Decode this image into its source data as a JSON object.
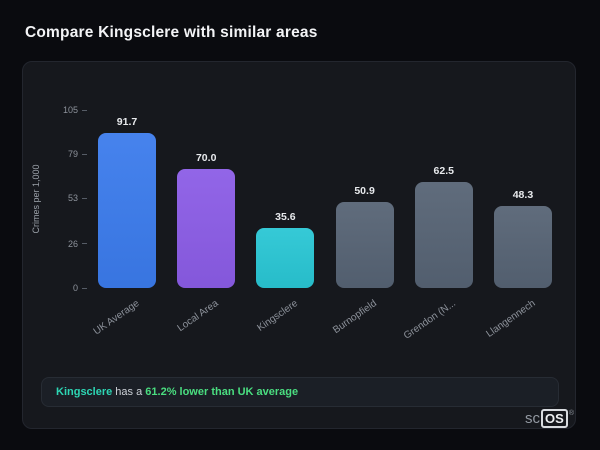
{
  "page": {
    "title": "Compare Kingsclere with similar areas"
  },
  "chart_data": {
    "type": "bar",
    "categories": [
      "UK Average",
      "Local Area",
      "Kingsclere",
      "Burnopfield",
      "Grendon (N...",
      "Llangennech"
    ],
    "values": [
      91.7,
      70.0,
      35.6,
      50.9,
      62.5,
      48.3
    ],
    "bar_colors": [
      "#3b7bec",
      "#8b5ce6",
      "#29c6d4",
      "#566374",
      "#566374",
      "#566374"
    ],
    "title": "",
    "xlabel": "",
    "ylabel": "Crimes per 1,000",
    "ylim": [
      0,
      105
    ],
    "yticks": [
      0,
      26,
      53,
      79,
      105
    ],
    "grid": false,
    "legend": false
  },
  "note": {
    "area": "Kingsclere",
    "middle": " has a ",
    "highlight": "61.2% lower than UK average"
  },
  "watermark": {
    "prefix": "sc",
    "suffix": "OS",
    "registered": "®"
  },
  "colors": {
    "background": "#0a0b0f",
    "card_background": "#16181d",
    "note_area": "#2dd6b4",
    "note_highlight": "#4ade80"
  }
}
